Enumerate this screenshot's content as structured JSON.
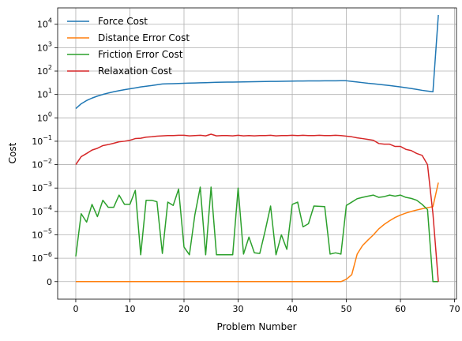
{
  "chart_data": {
    "type": "line",
    "xlabel": "Problem Number",
    "ylabel": "Cost",
    "xlim": [
      -3.35,
      70.35
    ],
    "xticks": [
      0,
      10,
      20,
      30,
      40,
      50,
      60,
      70
    ],
    "yscale": "symlog",
    "linthresh": 1e-06,
    "ylim_note": "symlog axis, zero at bottom, upper bound ~ 1e4.7",
    "yticks": [
      {
        "value": 0,
        "label": "0"
      },
      {
        "value": 1e-06,
        "label": "10",
        "exp": "−6"
      },
      {
        "value": 1e-05,
        "label": "10",
        "exp": "−5"
      },
      {
        "value": 0.0001,
        "label": "10",
        "exp": "−4"
      },
      {
        "value": 0.001,
        "label": "10",
        "exp": "−3"
      },
      {
        "value": 0.01,
        "label": "10",
        "exp": "−2"
      },
      {
        "value": 0.1,
        "label": "10",
        "exp": "−1"
      },
      {
        "value": 1,
        "label": "10",
        "exp": "0"
      },
      {
        "value": 10,
        "label": "10",
        "exp": "1"
      },
      {
        "value": 100,
        "label": "10",
        "exp": "2"
      },
      {
        "value": 1000,
        "label": "10",
        "exp": "3"
      },
      {
        "value": 10000,
        "label": "10",
        "exp": "4"
      }
    ],
    "grid": true,
    "legend_position": "top-left",
    "series": [
      {
        "name": "Force Cost",
        "color": "#1f77b4",
        "x": [
          0,
          1,
          2,
          3,
          4,
          5,
          6,
          7,
          8,
          9,
          10,
          11,
          12,
          13,
          14,
          15,
          16,
          17,
          18,
          19,
          20,
          21,
          22,
          23,
          24,
          25,
          26,
          27,
          28,
          29,
          30,
          31,
          32,
          33,
          34,
          35,
          36,
          37,
          38,
          39,
          40,
          41,
          42,
          43,
          44,
          45,
          46,
          47,
          48,
          49,
          50,
          51,
          52,
          53,
          54,
          55,
          56,
          57,
          58,
          59,
          60,
          61,
          62,
          63,
          64,
          65,
          66,
          67
        ],
        "values": [
          2.5,
          4,
          5.5,
          7,
          8.5,
          10,
          11.5,
          13,
          14.5,
          16,
          17.5,
          19,
          21,
          22.5,
          24,
          26,
          28,
          28.5,
          29,
          29.5,
          30,
          30.5,
          31,
          31.5,
          32,
          32.5,
          33,
          33.3,
          33.6,
          33.9,
          34.2,
          34.5,
          34.8,
          35.1,
          35.4,
          35.7,
          36,
          36.3,
          36.6,
          36.9,
          37.2,
          37.5,
          37.7,
          37.9,
          38,
          38.1,
          38.2,
          38.3,
          38.4,
          38.5,
          38.5,
          36,
          34,
          32,
          30,
          28.5,
          27,
          25.5,
          24,
          22.5,
          21,
          19.5,
          18,
          16.5,
          15,
          14,
          13,
          25000
        ]
      },
      {
        "name": "Distance Error Cost",
        "color": "#ff7f0e",
        "x": [
          0,
          1,
          2,
          3,
          4,
          5,
          6,
          7,
          8,
          9,
          10,
          11,
          12,
          13,
          14,
          15,
          16,
          17,
          18,
          19,
          20,
          21,
          22,
          23,
          24,
          25,
          26,
          27,
          28,
          29,
          30,
          31,
          32,
          33,
          34,
          35,
          36,
          37,
          38,
          39,
          40,
          41,
          42,
          43,
          44,
          45,
          46,
          47,
          48,
          49,
          50,
          51,
          52,
          53,
          54,
          55,
          56,
          57,
          58,
          59,
          60,
          61,
          62,
          63,
          64,
          65,
          66,
          67
        ],
        "values": [
          0,
          0,
          0,
          0,
          0,
          0,
          0,
          0,
          0,
          0,
          0,
          0,
          0,
          0,
          0,
          0,
          0,
          0,
          0,
          0,
          0,
          0,
          0,
          0,
          0,
          0,
          0,
          0,
          0,
          0,
          0,
          0,
          0,
          0,
          0,
          0,
          0,
          0,
          0,
          0,
          0,
          0,
          0,
          0,
          0,
          0,
          0,
          0,
          0,
          0,
          1e-07,
          3e-07,
          1.5e-06,
          3.5e-06,
          6e-06,
          1e-05,
          1.8e-05,
          2.8e-05,
          4e-05,
          5.5e-05,
          7e-05,
          8.5e-05,
          0.0001,
          0.000115,
          0.00013,
          0.000145,
          0.00016,
          0.0017
        ]
      },
      {
        "name": "Friction Error Cost",
        "color": "#2ca02c",
        "x": [
          0,
          1,
          2,
          3,
          4,
          5,
          6,
          7,
          8,
          9,
          10,
          11,
          12,
          13,
          14,
          15,
          16,
          17,
          18,
          19,
          20,
          21,
          22,
          23,
          24,
          25,
          26,
          27,
          28,
          29,
          30,
          31,
          32,
          33,
          34,
          35,
          36,
          37,
          38,
          39,
          40,
          41,
          42,
          43,
          44,
          45,
          46,
          47,
          48,
          49,
          50,
          51,
          52,
          53,
          54,
          55,
          56,
          57,
          58,
          59,
          60,
          61,
          62,
          63,
          64,
          65,
          66,
          67
        ],
        "values": [
          1.2e-06,
          8e-05,
          3.5e-05,
          0.0002,
          6e-05,
          0.0003,
          0.00015,
          0.00015,
          0.0005,
          0.0002,
          0.0002,
          0.0008,
          1.4e-06,
          0.0003,
          0.0003,
          0.00026,
          1.6e-06,
          0.00025,
          0.00018,
          0.0009,
          3e-06,
          1.4e-06,
          7e-05,
          0.0011,
          1.4e-06,
          0.0011,
          1.4e-06,
          1.4e-06,
          1.4e-06,
          1.4e-06,
          0.001,
          1.5e-06,
          8e-06,
          1.7e-06,
          1.6e-06,
          1.5e-05,
          0.00017,
          1.4e-06,
          1e-05,
          2.4e-06,
          0.0002,
          0.00025,
          2.2e-05,
          3e-05,
          0.00017,
          0.000165,
          0.00016,
          1.5e-06,
          1.7e-06,
          1.5e-06,
          0.00018,
          0.00025,
          0.00035,
          0.0004,
          0.00045,
          0.0005,
          0.0004,
          0.00043,
          0.0005,
          0.00045,
          0.0005,
          0.0004,
          0.00036,
          0.0003,
          0.0002,
          0.00012,
          0,
          0
        ]
      },
      {
        "name": "Relaxation Cost",
        "color": "#d62728",
        "x": [
          0,
          1,
          2,
          3,
          4,
          5,
          6,
          7,
          8,
          9,
          10,
          11,
          12,
          13,
          14,
          15,
          16,
          17,
          18,
          19,
          20,
          21,
          22,
          23,
          24,
          25,
          26,
          27,
          28,
          29,
          30,
          31,
          32,
          33,
          34,
          35,
          36,
          37,
          38,
          39,
          40,
          41,
          42,
          43,
          44,
          45,
          46,
          47,
          48,
          49,
          50,
          51,
          52,
          53,
          54,
          55,
          56,
          57,
          58,
          59,
          60,
          61,
          62,
          63,
          64,
          65,
          66,
          67
        ],
        "values": [
          0.01,
          0.022,
          0.03,
          0.042,
          0.05,
          0.065,
          0.072,
          0.082,
          0.095,
          0.1,
          0.11,
          0.13,
          0.135,
          0.15,
          0.155,
          0.165,
          0.17,
          0.175,
          0.175,
          0.18,
          0.18,
          0.17,
          0.175,
          0.18,
          0.17,
          0.2,
          0.17,
          0.175,
          0.175,
          0.17,
          0.18,
          0.17,
          0.175,
          0.17,
          0.175,
          0.175,
          0.18,
          0.17,
          0.175,
          0.175,
          0.18,
          0.175,
          0.18,
          0.175,
          0.175,
          0.18,
          0.175,
          0.175,
          0.18,
          0.175,
          0.165,
          0.155,
          0.14,
          0.13,
          0.12,
          0.11,
          0.08,
          0.075,
          0.075,
          0.06,
          0.06,
          0.045,
          0.04,
          0.03,
          0.025,
          0.01,
          8e-05,
          0
        ]
      }
    ]
  }
}
